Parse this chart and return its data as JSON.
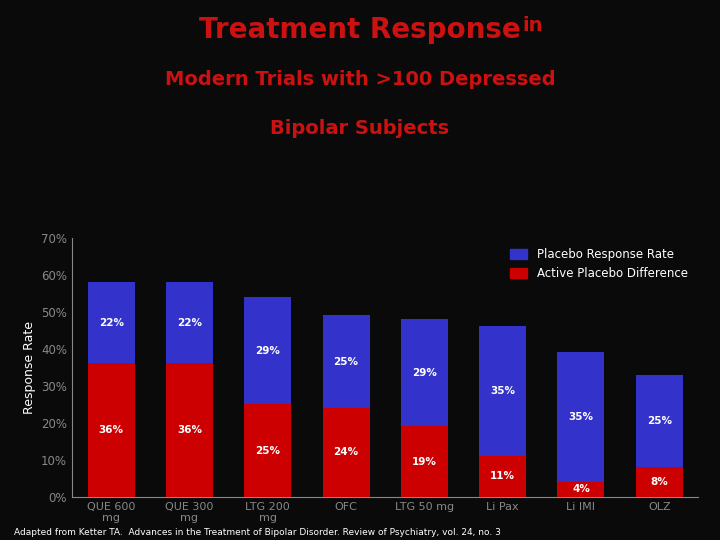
{
  "categories": [
    "QUE 600\nmg",
    "QUE 300\nmg",
    "LTG 200\nmg",
    "OFC",
    "LTG 50 mg",
    "Li Pax",
    "Li IMI",
    "OLZ"
  ],
  "placebo_rates": [
    22,
    22,
    29,
    25,
    29,
    35,
    35,
    25
  ],
  "active_diff": [
    36,
    36,
    25,
    24,
    19,
    11,
    4,
    8
  ],
  "placebo_color": "#3333cc",
  "active_color": "#cc0000",
  "bg_color": "#0a0a0a",
  "title_color": "#cc1111",
  "ylabel": "Response Rate",
  "yticks": [
    0,
    10,
    20,
    30,
    40,
    50,
    60,
    70
  ],
  "ytick_labels": [
    "0%",
    "10%",
    "20%",
    "30%",
    "40%",
    "50%",
    "60%",
    "70%"
  ],
  "legend_placebo": "Placebo Response Rate",
  "legend_active": "Active Placebo Difference",
  "footnote": "Adapted from Ketter TA.  Advances in the Treatment of Bipolar Disorder. Review of Psychiatry, vol. 24, no. 3",
  "axis_color": "#888888",
  "text_color": "#ffffff",
  "bar_width": 0.6,
  "title_line1_big": "Treatment Response",
  "title_line1_small": " in",
  "title_line2": "Modern Trials with >100 Depressed",
  "title_line3": "Bipolar Subjects",
  "title_fontsize_big": 20,
  "title_fontsize_small": 14,
  "footnote_fontsize": 6.5
}
